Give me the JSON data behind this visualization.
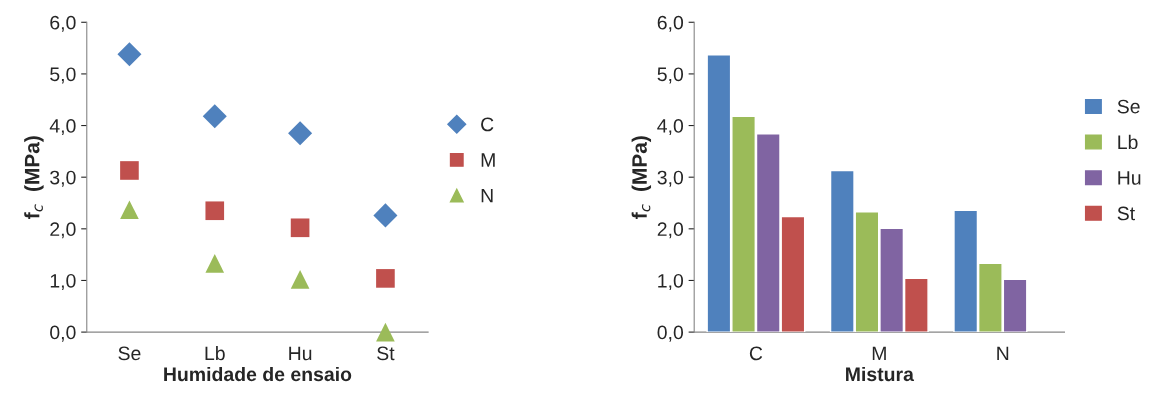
{
  "chart_data": [
    {
      "type": "scatter",
      "xlabel": "Humidade de ensaio",
      "ylabel": "f$_{c}$  (MPa)",
      "categories": [
        "Se",
        "Lb",
        "Hu",
        "St"
      ],
      "series": [
        {
          "name": "C",
          "color": "#4f81bd",
          "marker": "diamond",
          "values": [
            5.38,
            4.18,
            3.85,
            2.26
          ]
        },
        {
          "name": "M",
          "color": "#c0504d",
          "marker": "square",
          "values": [
            3.13,
            2.35,
            2.02,
            1.04
          ]
        },
        {
          "name": "N",
          "color": "#9bbb59",
          "marker": "triangle",
          "values": [
            2.37,
            1.33,
            1.02,
            0.0
          ]
        }
      ],
      "ylim": [
        0,
        6
      ],
      "yticks": [
        {
          "value": 0,
          "label": "0,0"
        },
        {
          "value": 1,
          "label": "1,0"
        },
        {
          "value": 2,
          "label": "2,0"
        },
        {
          "value": 3,
          "label": "3,0"
        },
        {
          "value": 4,
          "label": "4,0"
        },
        {
          "value": 5,
          "label": "5,0"
        },
        {
          "value": 6,
          "label": "6,0"
        }
      ],
      "legend": "right",
      "grid": false
    },
    {
      "type": "bar",
      "xlabel": "Mistura",
      "ylabel": "f$_{c}$  (MPa)",
      "categories": [
        "C",
        "M",
        "N"
      ],
      "series": [
        {
          "name": "Se",
          "color": "#4f81bd",
          "values": [
            5.37,
            3.13,
            2.36
          ]
        },
        {
          "name": "Lb",
          "color": "#9bbb59",
          "values": [
            4.18,
            2.33,
            1.33
          ]
        },
        {
          "name": "Hu",
          "color": "#8064a2",
          "values": [
            3.84,
            2.01,
            1.02
          ]
        },
        {
          "name": "St",
          "color": "#c0504d",
          "values": [
            2.24,
            1.04,
            null
          ]
        }
      ],
      "ylim": [
        0,
        6
      ],
      "yticks": [
        {
          "value": 0,
          "label": "0,0"
        },
        {
          "value": 1,
          "label": "1,0"
        },
        {
          "value": 2,
          "label": "2,0"
        },
        {
          "value": 3,
          "label": "3,0"
        },
        {
          "value": 4,
          "label": "4,0"
        },
        {
          "value": 5,
          "label": "5,0"
        },
        {
          "value": 6,
          "label": "6,0"
        }
      ],
      "legend": "right",
      "grid": false
    }
  ]
}
